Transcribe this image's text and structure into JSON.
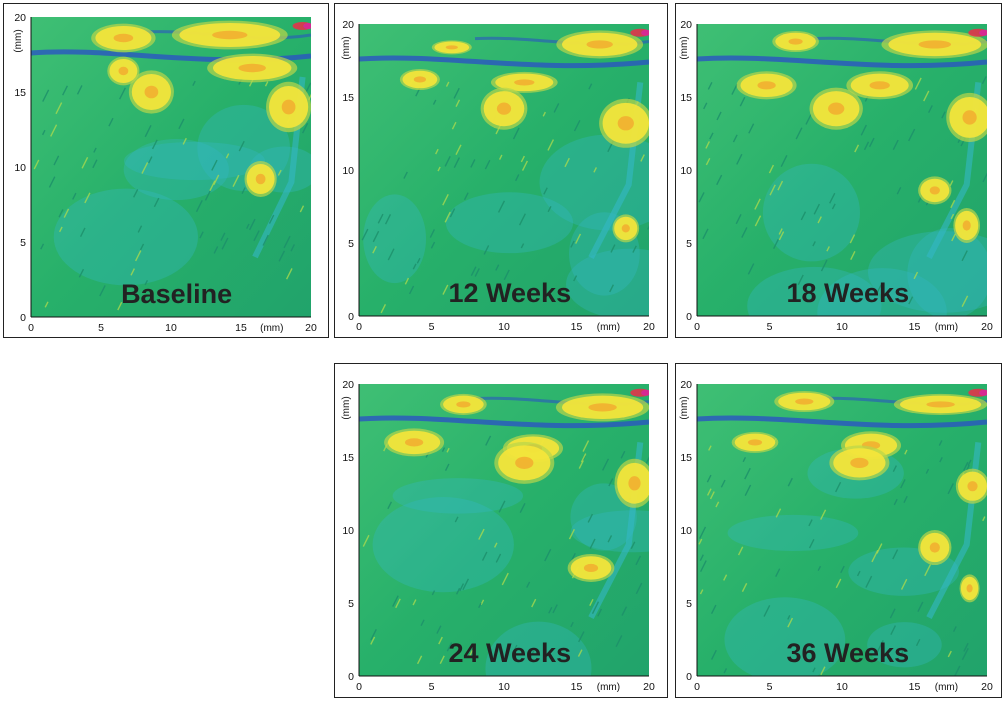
{
  "panels": [
    {
      "label": "Baseline",
      "seed": 11
    },
    {
      "label": "12 Weeks",
      "seed": 23
    },
    {
      "label": "18 Weeks",
      "seed": 37
    },
    {
      "label": "24 Weeks",
      "seed": 51
    },
    {
      "label": "36 Weeks",
      "seed": 67
    }
  ],
  "axes": {
    "unit": "(mm)",
    "ticks": [
      "0",
      "5",
      "10",
      "15",
      "20"
    ]
  },
  "colors": {
    "background_green": "#27b06a",
    "cyan": "#33b7c4",
    "blue": "#2a55c2",
    "yellow": "#f6e53a",
    "orange": "#f3a52e",
    "red": "#e2344a",
    "magenta": "#d6279a"
  }
}
